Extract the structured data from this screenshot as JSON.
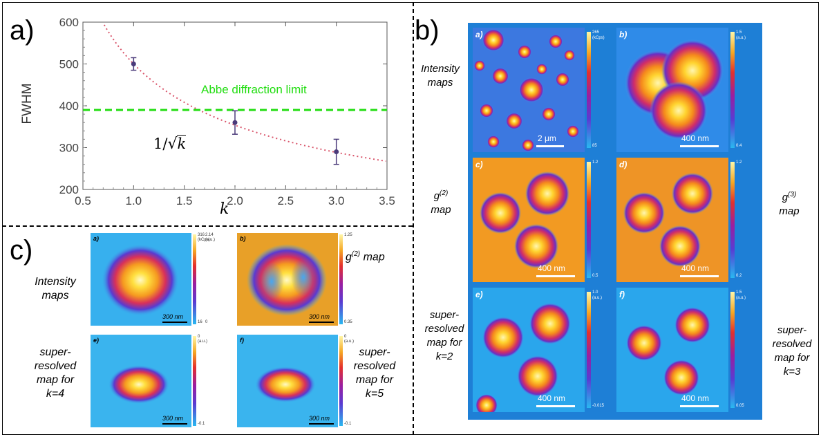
{
  "panel_a": {
    "label": "a)",
    "annotation": "Abbe  diffraction limit",
    "formula_prefix": "1/",
    "formula_arg": "k",
    "xlabel": "k",
    "ylabel": "FWHM",
    "xticks": [
      "0.5",
      "1.0",
      "1.5",
      "2.0",
      "2.5",
      "3.0",
      "3.5"
    ],
    "yticks": [
      "200",
      "300",
      "400",
      "500",
      "600"
    ],
    "colors": {
      "points": "#4a3a7a",
      "fit": "#d9546a",
      "abbe": "#22dd11"
    }
  },
  "chart_data": {
    "type": "scatter",
    "xlabel": "k",
    "ylabel": "FWHM",
    "xlim": [
      0.5,
      3.5
    ],
    "ylim": [
      200,
      600
    ],
    "grid": false,
    "series": [
      {
        "x": [
          1.0,
          2.0,
          3.0
        ],
        "y": [
          500,
          360,
          290
        ],
        "yerr": [
          15,
          28,
          30
        ]
      }
    ],
    "fit_curve": {
      "formula": "500/sqrt(k)",
      "style": "dotted"
    },
    "reference_line": {
      "y": 390,
      "label": "Abbe  diffraction limit",
      "style": "dashed"
    }
  },
  "panel_b": {
    "label": "b)",
    "row_labels": {
      "intensity": "Intensity maps",
      "g2_base": "g",
      "g2_sup": "(2)",
      "g2_word": "map",
      "g3_base": "g",
      "g3_sup": "(3)",
      "g3_word": "map",
      "sr2": "super-resolved map for k=2",
      "sr3": "super-resolved map for k=3"
    },
    "tiles": [
      {
        "tag": "a)",
        "scalebar": "2 μm",
        "cbar_top": "265",
        "cbar_unit": "(kCps)",
        "cbar_bottom": "85"
      },
      {
        "tag": "b)",
        "scalebar": "400 nm",
        "cbar_top": "1.5",
        "cbar_unit": "(a.u.)",
        "cbar_bottom": "0.4"
      },
      {
        "tag": "c)",
        "scalebar": "400 nm",
        "cbar_top": "1.2",
        "cbar_unit": "",
        "cbar_bottom": "0.5"
      },
      {
        "tag": "d)",
        "scalebar": "400 nm",
        "cbar_top": "1.2",
        "cbar_unit": "",
        "cbar_bottom": "0.2"
      },
      {
        "tag": "e)",
        "scalebar": "400 nm",
        "cbar_top": "1.0",
        "cbar_unit": "(a.u.)",
        "cbar_bottom": "-0.015"
      },
      {
        "tag": "f)",
        "scalebar": "400 nm",
        "cbar_top": "1.5",
        "cbar_unit": "(a.u.)",
        "cbar_bottom": "0.05"
      }
    ]
  },
  "panel_c": {
    "label": "c)",
    "row_labels": {
      "intensity": "Intensity maps",
      "g2_base": "g",
      "g2_sup": "(2)",
      "g2_word": " map",
      "sr4": "super-resolved map for k=4",
      "sr5": "super-resolved map for k=5"
    },
    "tiles": [
      {
        "tag": "a)",
        "scalebar": "300 nm",
        "cbar_top": "316",
        "cbar_top2": "2.14",
        "cbar_unit": "(kCps)",
        "cbar_unit2": "(a.u.)",
        "cbar_bottom": "16",
        "cbar_bottom2": "0"
      },
      {
        "tag": "b)",
        "scalebar": "300 nm",
        "cbar_top": "1.25",
        "cbar_bottom": "0.35"
      },
      {
        "tag": "e)",
        "scalebar": "300 nm",
        "cbar_top": "0",
        "cbar_unit": "(a.u.)",
        "cbar_bottom": "-0.1"
      },
      {
        "tag": "f)",
        "scalebar": "300 nm",
        "cbar_top": "0",
        "cbar_unit": "(a.u.)",
        "cbar_bottom": "-0.1"
      }
    ]
  }
}
